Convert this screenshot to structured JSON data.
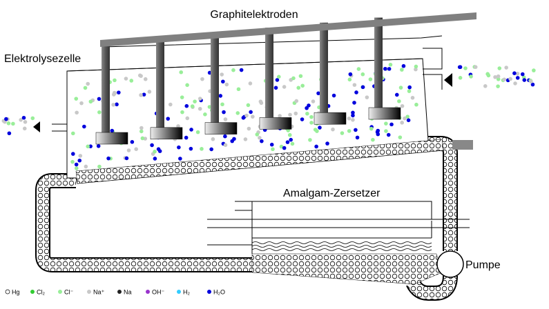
{
  "title": "Graphitelektroden",
  "labels": {
    "cell": "Elektrolysezelle",
    "decomposer": "Amalgam-Zersetzer",
    "pump": "Pumpe"
  },
  "legend": {
    "items": [
      {
        "label": "Hg",
        "color": "#ffffff"
      },
      {
        "label": "Cl₂",
        "color": "#33cc33"
      },
      {
        "label": "Cl⁻",
        "color": "#99ee99"
      },
      {
        "label": "Na⁺",
        "color": "#c8c8c8"
      },
      {
        "label": "Na",
        "color": "#222222"
      },
      {
        "label": "OH⁻",
        "color": "#9933cc"
      },
      {
        "label": "H₂",
        "color": "#33ccff"
      },
      {
        "label": "H₂O",
        "color": "#0000dd"
      }
    ]
  }
}
